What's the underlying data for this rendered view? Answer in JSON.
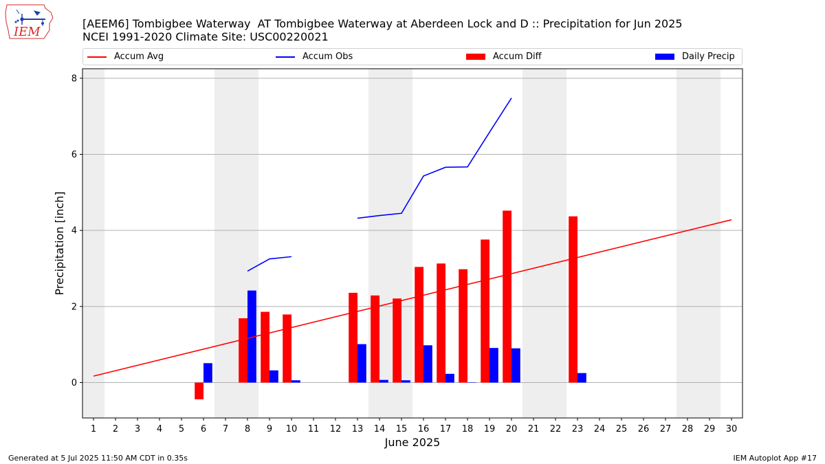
{
  "header": {
    "title": "[AEEM6] Tombigbee Waterway  AT Tombigbee Waterway at Aberdeen Lock and D :: Precipitation for Jun 2025",
    "subtitle": "NCEI 1991-2020 Climate Site: USC00220021"
  },
  "logo": {
    "text": "IEM",
    "icon": "iowa-state-weather-logo",
    "color": "#d42a2a"
  },
  "legend": {
    "items": [
      {
        "label": "Accum Avg",
        "color": "#ff0000",
        "kind": "line"
      },
      {
        "label": "Accum Obs",
        "color": "#0000ff",
        "kind": "line"
      },
      {
        "label": "Accum Diff",
        "color": "#ff0000",
        "kind": "bar"
      },
      {
        "label": "Daily Precip",
        "color": "#0000ff",
        "kind": "bar"
      }
    ],
    "placement": "top"
  },
  "footer": {
    "left": "Generated at 5 Jul 2025 11:50 AM CDT in 0.35s",
    "right": "IEM Autoplot App #17"
  },
  "chart_data": {
    "type": "bar",
    "title": "[AEEM6] Tombigbee Waterway  AT Tombigbee Waterway at Aberdeen Lock and D :: Precipitation for Jun 2025",
    "subtitle": "NCEI 1991-2020 Climate Site: USC00220021",
    "xlabel": "June 2025",
    "ylabel": "Precipitation [inch]",
    "x": [
      1,
      2,
      3,
      4,
      5,
      6,
      7,
      8,
      9,
      10,
      11,
      12,
      13,
      14,
      15,
      16,
      17,
      18,
      19,
      20,
      21,
      22,
      23,
      24,
      25,
      26,
      27,
      28,
      29,
      30
    ],
    "xlim": [
      0.5,
      30.5
    ],
    "ylim": [
      -0.93,
      8.25
    ],
    "yticks": [
      0,
      2,
      4,
      6,
      8
    ],
    "grid": "horizontal",
    "weekend_days": [
      1,
      7,
      8,
      14,
      15,
      21,
      22,
      28,
      29
    ],
    "weekend_color": "#eeeeee",
    "series": [
      {
        "name": "Accum Avg",
        "kind": "line",
        "color": "#ff0000",
        "x": [
          1,
          30
        ],
        "values": [
          0.17,
          4.28
        ]
      },
      {
        "name": "Accum Obs",
        "kind": "line",
        "color": "#0000ff",
        "segments": [
          {
            "x": [
              8,
              9,
              10
            ],
            "values": [
              2.93,
              3.25,
              3.31
            ]
          },
          {
            "x": [
              13,
              14,
              15,
              16,
              17,
              18,
              19,
              20
            ],
            "values": [
              4.32,
              4.39,
              4.45,
              5.43,
              5.66,
              5.67,
              6.58,
              7.48
            ]
          }
        ]
      },
      {
        "name": "Accum Diff",
        "kind": "bar",
        "color": "#ff0000",
        "x": [
          6,
          8,
          9,
          10,
          13,
          14,
          15,
          16,
          17,
          18,
          19,
          20,
          23
        ],
        "values": [
          -0.44,
          1.69,
          1.86,
          1.79,
          2.36,
          2.29,
          2.21,
          3.04,
          3.13,
          2.98,
          3.76,
          4.52,
          4.37
        ]
      },
      {
        "name": "Daily Precip",
        "kind": "bar",
        "color": "#0000ff",
        "x": [
          6,
          8,
          9,
          10,
          13,
          14,
          15,
          16,
          17,
          18,
          19,
          20,
          23
        ],
        "values": [
          0.51,
          2.42,
          0.32,
          0.06,
          1.01,
          0.07,
          0.06,
          0.98,
          0.23,
          0.01,
          0.91,
          0.9,
          0.25
        ]
      }
    ]
  }
}
